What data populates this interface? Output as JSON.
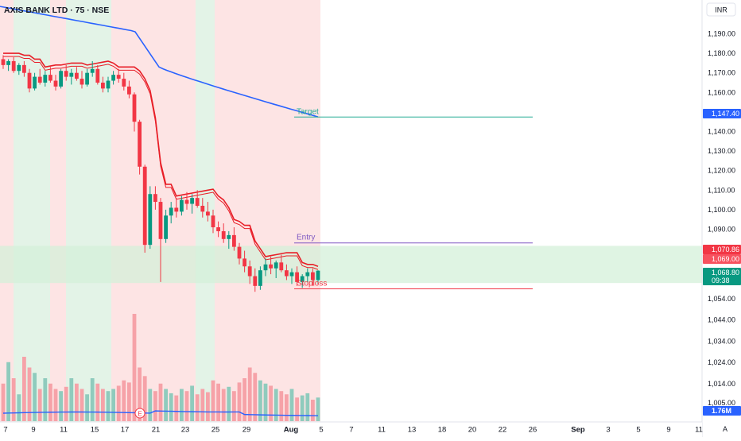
{
  "header": {
    "title": "AXIS BANK LTD · 75 · NSE"
  },
  "currency": {
    "label": "INR"
  },
  "colors": {
    "bull": "#089981",
    "bear": "#f23645",
    "ma_blue": "#2962ff",
    "red_line": "#e81e27",
    "target": "#22ab94",
    "entry": "#7e57c2",
    "stoploss": "#f23645",
    "zone_fill": "#d4f0da",
    "bg_red": "#fde4e4",
    "bg_green": "#e3f3e7"
  },
  "chart_data": {
    "type": "candlestick",
    "title": "AXIS BANK LTD · 75 · NSE",
    "y_axis": {
      "ticks": [
        "1,190.00",
        "1,180.00",
        "1,170.00",
        "1,160.00",
        "1,150.00",
        "1,140.00",
        "1,130.00",
        "1,120.00",
        "1,110.00",
        "1,100.00",
        "1,090.00",
        "1,054.00",
        "1,044.00",
        "1,034.00",
        "1,024.00",
        "1,014.00",
        "1,005.00"
      ]
    },
    "x_axis": {
      "ticks": [
        "7",
        "9",
        "11",
        "15",
        "17",
        "21",
        "23",
        "25",
        "29",
        "Aug",
        "5",
        "7",
        "11",
        "13",
        "18",
        "20",
        "22",
        "26",
        "Sep",
        "3",
        "5",
        "9",
        "11"
      ]
    },
    "price_labels": [
      {
        "name": "target",
        "value": "1,147.40"
      },
      {
        "name": "upper-red",
        "value": "1,070.86"
      },
      {
        "name": "lower-red",
        "value": "1,069.00"
      },
      {
        "name": "last",
        "value": "1,068.80",
        "extra": "09:38"
      }
    ],
    "volume_labels": [
      {
        "value": "1.76M"
      }
    ],
    "lines": [
      {
        "name": "Target",
        "value": 1147.4
      },
      {
        "name": "Entry",
        "value": 1083
      },
      {
        "name": "Stoploss",
        "value": 1059.5
      }
    ],
    "zone": {
      "top": 1081.5,
      "bottom": 1062.5
    },
    "candles": [
      [
        1177,
        1179,
        1172,
        1174
      ],
      [
        1174,
        1177,
        1171,
        1176
      ],
      [
        1176,
        1178,
        1170,
        1171
      ],
      [
        1171,
        1175,
        1169,
        1174
      ],
      [
        1174,
        1176,
        1168,
        1170
      ],
      [
        1170,
        1172,
        1160,
        1162
      ],
      [
        1162,
        1170,
        1161,
        1168
      ],
      [
        1168,
        1172,
        1164,
        1165
      ],
      [
        1165,
        1171,
        1163,
        1169
      ],
      [
        1169,
        1173,
        1165,
        1166
      ],
      [
        1166,
        1169,
        1161,
        1163
      ],
      [
        1163,
        1172,
        1162,
        1171
      ],
      [
        1171,
        1174,
        1166,
        1168
      ],
      [
        1168,
        1172,
        1164,
        1170
      ],
      [
        1170,
        1173,
        1166,
        1167
      ],
      [
        1167,
        1171,
        1162,
        1164
      ],
      [
        1164,
        1172,
        1163,
        1170
      ],
      [
        1170,
        1176,
        1168,
        1172
      ],
      [
        1172,
        1174,
        1164,
        1165
      ],
      [
        1165,
        1168,
        1160,
        1162
      ],
      [
        1162,
        1168,
        1160,
        1166
      ],
      [
        1166,
        1171,
        1164,
        1169
      ],
      [
        1169,
        1172,
        1165,
        1167
      ],
      [
        1167,
        1170,
        1161,
        1163
      ],
      [
        1163,
        1166,
        1157,
        1159
      ],
      [
        1159,
        1160,
        1140,
        1145
      ],
      [
        1145,
        1146,
        1118,
        1122
      ],
      [
        1122,
        1123,
        1078,
        1082
      ],
      [
        1082,
        1112,
        1080,
        1108
      ],
      [
        1108,
        1112,
        1100,
        1104
      ],
      [
        1104,
        1106,
        1063,
        1085
      ],
      [
        1085,
        1100,
        1083,
        1097
      ],
      [
        1097,
        1104,
        1093,
        1101
      ],
      [
        1101,
        1106,
        1096,
        1099
      ],
      [
        1099,
        1107,
        1097,
        1105
      ],
      [
        1105,
        1109,
        1100,
        1103
      ],
      [
        1103,
        1108,
        1098,
        1106
      ],
      [
        1106,
        1110,
        1101,
        1102
      ],
      [
        1102,
        1106,
        1096,
        1099
      ],
      [
        1099,
        1104,
        1094,
        1097
      ],
      [
        1097,
        1100,
        1088,
        1091
      ],
      [
        1091,
        1094,
        1086,
        1089
      ],
      [
        1089,
        1093,
        1083,
        1085
      ],
      [
        1085,
        1089,
        1080,
        1087
      ],
      [
        1087,
        1091,
        1079,
        1081
      ],
      [
        1081,
        1083,
        1072,
        1075
      ],
      [
        1075,
        1079,
        1068,
        1071
      ],
      [
        1071,
        1074,
        1062,
        1066
      ],
      [
        1066,
        1070,
        1058,
        1061
      ],
      [
        1061,
        1071,
        1059,
        1069
      ],
      [
        1069,
        1075,
        1066,
        1072
      ],
      [
        1072,
        1076,
        1067,
        1070
      ],
      [
        1070,
        1074,
        1065,
        1073
      ],
      [
        1073,
        1077,
        1068,
        1069
      ],
      [
        1069,
        1072,
        1064,
        1066
      ],
      [
        1066,
        1070,
        1062,
        1068
      ],
      [
        1068,
        1071,
        1061,
        1063
      ],
      [
        1063,
        1067,
        1060,
        1066
      ],
      [
        1066,
        1070,
        1063,
        1068
      ],
      [
        1068,
        1070,
        1061,
        1064
      ],
      [
        1064,
        1069,
        1062,
        1068.8
      ]
    ],
    "volume_mode": "relative",
    "volumes": [
      0.35,
      0.55,
      0.4,
      0.25,
      0.6,
      0.5,
      0.45,
      0.3,
      0.4,
      0.35,
      0.3,
      0.28,
      0.32,
      0.4,
      0.35,
      0.3,
      0.25,
      0.4,
      0.35,
      0.3,
      0.28,
      0.3,
      0.33,
      0.38,
      0.36,
      1.0,
      0.5,
      0.42,
      0.3,
      0.28,
      0.35,
      0.3,
      0.26,
      0.24,
      0.3,
      0.28,
      0.33,
      0.25,
      0.3,
      0.27,
      0.38,
      0.35,
      0.3,
      0.32,
      0.28,
      0.36,
      0.4,
      0.5,
      0.45,
      0.38,
      0.35,
      0.33,
      0.3,
      0.28,
      0.25,
      0.3,
      0.22,
      0.24,
      0.26,
      0.2,
      0.22
    ]
  }
}
